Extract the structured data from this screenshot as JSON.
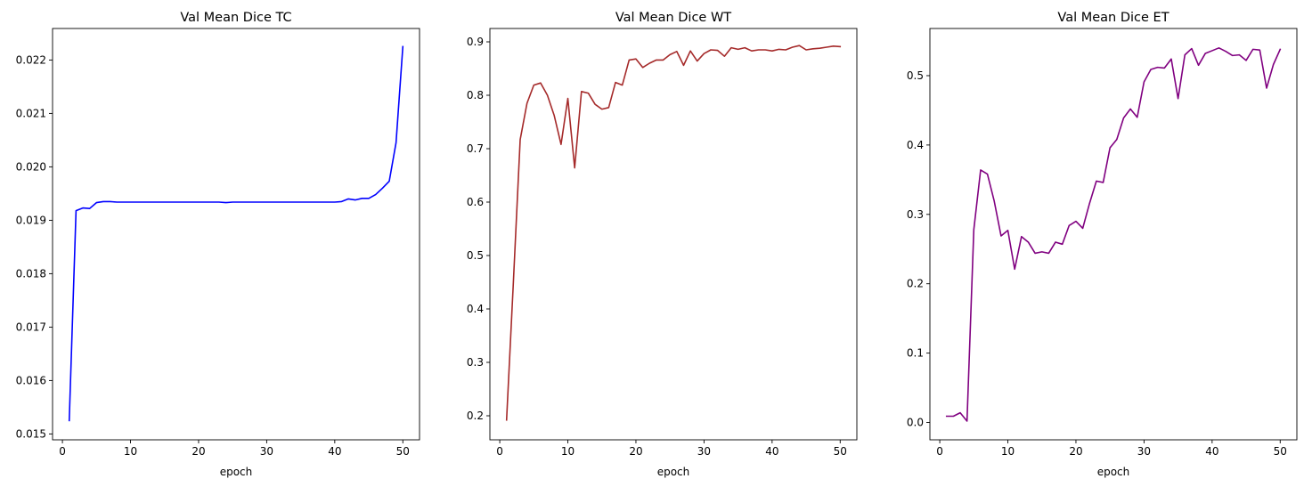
{
  "chart_data": [
    {
      "type": "line",
      "title": "Val Mean Dice TC",
      "xlabel": "epoch",
      "ylabel": "",
      "xlim": [
        -1.45,
        52.45
      ],
      "ylim": [
        0.01489,
        0.02259
      ],
      "xticks": [
        0,
        10,
        20,
        30,
        40,
        50
      ],
      "yticks": [
        0.015,
        0.016,
        0.017,
        0.018,
        0.019,
        0.02,
        0.021,
        0.022
      ],
      "ytick_labels": [
        "0.015",
        "0.016",
        "0.017",
        "0.018",
        "0.019",
        "0.020",
        "0.021",
        "0.022"
      ],
      "color": "#0000ff",
      "grid": false,
      "x": [
        1,
        2,
        3,
        4,
        5,
        6,
        7,
        8,
        9,
        10,
        11,
        12,
        13,
        14,
        15,
        16,
        17,
        18,
        19,
        20,
        21,
        22,
        23,
        24,
        25,
        26,
        27,
        28,
        29,
        30,
        31,
        32,
        33,
        34,
        35,
        36,
        37,
        38,
        39,
        40,
        41,
        42,
        43,
        44,
        45,
        46,
        47,
        48,
        49,
        50
      ],
      "y": [
        0.01525,
        0.01918,
        0.01923,
        0.01922,
        0.01933,
        0.01935,
        0.01935,
        0.01934,
        0.01934,
        0.01934,
        0.01934,
        0.01934,
        0.01934,
        0.01934,
        0.01934,
        0.01934,
        0.01934,
        0.01934,
        0.01934,
        0.01934,
        0.01934,
        0.01934,
        0.01934,
        0.01933,
        0.01934,
        0.01934,
        0.01934,
        0.01934,
        0.01934,
        0.01934,
        0.01934,
        0.01934,
        0.01934,
        0.01934,
        0.01934,
        0.01934,
        0.01934,
        0.01934,
        0.01934,
        0.01934,
        0.01935,
        0.0194,
        0.01938,
        0.01941,
        0.01941,
        0.01948,
        0.0196,
        0.01973,
        0.02045,
        0.02225
      ]
    },
    {
      "type": "line",
      "title": "Val Mean Dice WT",
      "xlabel": "epoch",
      "ylabel": "",
      "xlim": [
        -1.45,
        52.45
      ],
      "ylim": [
        0.155,
        0.925
      ],
      "xticks": [
        0,
        10,
        20,
        30,
        40,
        50
      ],
      "yticks": [
        0.2,
        0.3,
        0.4,
        0.5,
        0.6,
        0.7,
        0.8,
        0.9
      ],
      "ytick_labels": [
        "0.2",
        "0.3",
        "0.4",
        "0.5",
        "0.6",
        "0.7",
        "0.8",
        "0.9"
      ],
      "color": "#a52a2a",
      "grid": false,
      "x": [
        1,
        2,
        3,
        4,
        5,
        6,
        7,
        8,
        9,
        10,
        11,
        12,
        13,
        14,
        15,
        16,
        17,
        18,
        19,
        20,
        21,
        22,
        23,
        24,
        25,
        26,
        27,
        28,
        29,
        30,
        31,
        32,
        33,
        34,
        35,
        36,
        37,
        38,
        39,
        40,
        41,
        42,
        43,
        44,
        45,
        46,
        47,
        48,
        49,
        50
      ],
      "y": [
        0.192,
        0.45,
        0.717,
        0.785,
        0.819,
        0.823,
        0.8,
        0.762,
        0.708,
        0.794,
        0.664,
        0.807,
        0.804,
        0.783,
        0.774,
        0.777,
        0.824,
        0.819,
        0.866,
        0.868,
        0.852,
        0.86,
        0.866,
        0.866,
        0.876,
        0.882,
        0.856,
        0.883,
        0.864,
        0.878,
        0.885,
        0.884,
        0.873,
        0.889,
        0.886,
        0.889,
        0.883,
        0.885,
        0.885,
        0.883,
        0.886,
        0.885,
        0.89,
        0.893,
        0.885,
        0.887,
        0.888,
        0.89,
        0.892,
        0.891
      ]
    },
    {
      "type": "line",
      "title": "Val Mean Dice ET",
      "xlabel": "epoch",
      "ylabel": "",
      "xlim": [
        -1.45,
        52.45
      ],
      "ylim": [
        -0.025,
        0.568
      ],
      "xticks": [
        0,
        10,
        20,
        30,
        40,
        50
      ],
      "yticks": [
        0.0,
        0.1,
        0.2,
        0.3,
        0.4,
        0.5
      ],
      "ytick_labels": [
        "0.0",
        "0.1",
        "0.2",
        "0.3",
        "0.4",
        "0.5"
      ],
      "color": "#800080",
      "grid": false,
      "x": [
        1,
        2,
        3,
        4,
        5,
        6,
        7,
        8,
        9,
        10,
        11,
        12,
        13,
        14,
        15,
        16,
        17,
        18,
        19,
        20,
        21,
        22,
        23,
        24,
        25,
        26,
        27,
        28,
        29,
        30,
        31,
        32,
        33,
        34,
        35,
        36,
        37,
        38,
        39,
        40,
        41,
        42,
        43,
        44,
        45,
        46,
        47,
        48,
        49,
        50
      ],
      "y": [
        0.009,
        0.009,
        0.014,
        0.002,
        0.278,
        0.364,
        0.358,
        0.319,
        0.269,
        0.277,
        0.221,
        0.268,
        0.26,
        0.244,
        0.246,
        0.244,
        0.26,
        0.257,
        0.284,
        0.29,
        0.28,
        0.316,
        0.348,
        0.346,
        0.396,
        0.408,
        0.439,
        0.452,
        0.44,
        0.491,
        0.509,
        0.512,
        0.511,
        0.524,
        0.467,
        0.53,
        0.539,
        0.515,
        0.532,
        0.536,
        0.54,
        0.535,
        0.529,
        0.53,
        0.522,
        0.538,
        0.537,
        0.482,
        0.516,
        0.538
      ]
    }
  ]
}
